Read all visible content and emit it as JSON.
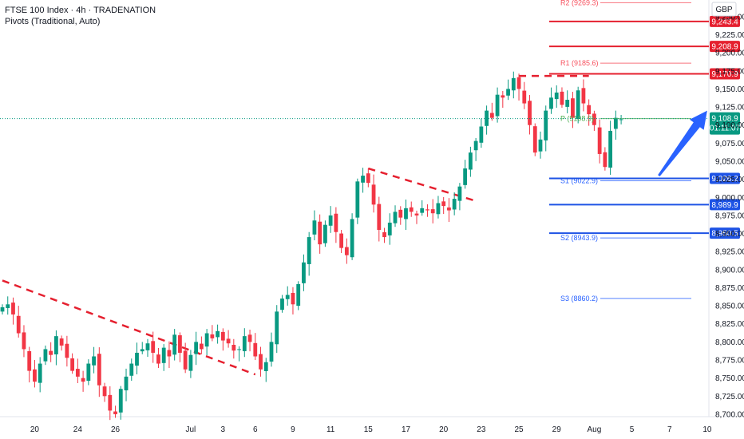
{
  "header": {
    "title": "FTSE 100 Index · 4h · TRADENATION",
    "indicator": "Pivots (Traditional, Auto)"
  },
  "currency": "GBP",
  "colors": {
    "up": "#089981",
    "down": "#f23645",
    "resistance": "#e5202f",
    "support": "#1e53e5",
    "pivot": "#4caf50",
    "arrow": "#2962ff",
    "price_line": "#089981"
  },
  "chart_data": {
    "type": "candlestick",
    "ylim": [
      8690,
      9262
    ],
    "y_ticks": [
      8700,
      8725,
      8750,
      8775,
      8800,
      8825,
      8850,
      8875,
      8900,
      8925,
      8950,
      8975,
      9000,
      9025,
      9050,
      9075,
      9100,
      9125,
      9150,
      9175,
      9200,
      9225,
      9250
    ],
    "x_ticks": [
      {
        "label": "20",
        "i": 6
      },
      {
        "label": "24",
        "i": 14
      },
      {
        "label": "26",
        "i": 21
      },
      {
        "label": "Jul",
        "i": 35
      },
      {
        "label": "3",
        "i": 41
      },
      {
        "label": "6",
        "i": 47
      },
      {
        "label": "9",
        "i": 54
      },
      {
        "label": "11",
        "i": 61
      },
      {
        "label": "15",
        "i": 68
      },
      {
        "label": "17",
        "i": 75
      },
      {
        "label": "20",
        "i": 82
      },
      {
        "label": "23",
        "i": 89
      },
      {
        "label": "25",
        "i": 96
      },
      {
        "label": "29",
        "i": 103
      },
      {
        "label": "Aug",
        "i": 110
      },
      {
        "label": "5",
        "i": 117
      },
      {
        "label": "7",
        "i": 124
      },
      {
        "label": "10",
        "i": 131
      }
    ],
    "closes": [
      8848,
      8852,
      8838,
      8812,
      8790,
      8760,
      8745,
      8770,
      8790,
      8782,
      8808,
      8795,
      8778,
      8760,
      8752,
      8745,
      8770,
      8780,
      8740,
      8725,
      8705,
      8700,
      8735,
      8752,
      8770,
      8785,
      8790,
      8798,
      8785,
      8770,
      8792,
      8780,
      8810,
      8785,
      8762,
      8782,
      8800,
      8790,
      8812,
      8805,
      8815,
      8802,
      8798,
      8788,
      8790,
      8808,
      8800,
      8780,
      8762,
      8772,
      8800,
      8842,
      8860,
      8865,
      8852,
      8880,
      8910,
      8945,
      8968,
      8935,
      8962,
      8975,
      8952,
      8930,
      8920,
      8970,
      9022,
      9030,
      9020,
      8990,
      8955,
      8945,
      8965,
      8980,
      8972,
      8985,
      8980,
      8975,
      8985,
      8982,
      8978,
      8992,
      8988,
      8982,
      8998,
      9015,
      9040,
      9062,
      9078,
      9098,
      9120,
      9110,
      9142,
      9138,
      9150,
      9165,
      9150,
      9130,
      9100,
      9062,
      9080,
      9120,
      9138,
      9145,
      9128,
      9135,
      9110,
      9148,
      9130,
      9115,
      9100,
      9060,
      9042,
      9092,
      9110,
      9108
    ],
    "pivots": {
      "R2": 9269.3,
      "R1": 9185.6,
      "P": 9108.9,
      "S1": 9022.9,
      "S2": 8943.9,
      "S3": 8860.2
    },
    "pivot_labels": {
      "R2": "R2 (9269.3)",
      "R1": "R1 (9185.6)",
      "P": "P (9108.9)",
      "S1": "S1 (9022.9)",
      "S2": "S2 (8943.9)",
      "S3": "S3 (8860.2)"
    },
    "resistance_levels": [
      9243.4,
      9208.9,
      9170.9
    ],
    "support_levels": [
      9026.2,
      8989.9,
      8950.5
    ],
    "level_labels": {
      "resistance": [
        "9,243.4",
        "9,208.9",
        "9,170.9"
      ],
      "support": [
        "9,026.2",
        "8,989.9",
        "8,950.5"
      ]
    },
    "current_price": 9108.9,
    "current_price_label": "9,108.9",
    "countdown": "01:11:07",
    "trendlines": [
      {
        "from": [
          0,
          8885
        ],
        "to": [
          47,
          8755
        ]
      },
      {
        "from": [
          68,
          9040
        ],
        "to": [
          88,
          8995
        ]
      },
      {
        "from": [
          96,
          9168
        ],
        "to": [
          109,
          9168
        ]
      }
    ],
    "arrow": {
      "from": [
        122,
        9030
      ],
      "to": [
        131,
        9120
      ]
    }
  }
}
